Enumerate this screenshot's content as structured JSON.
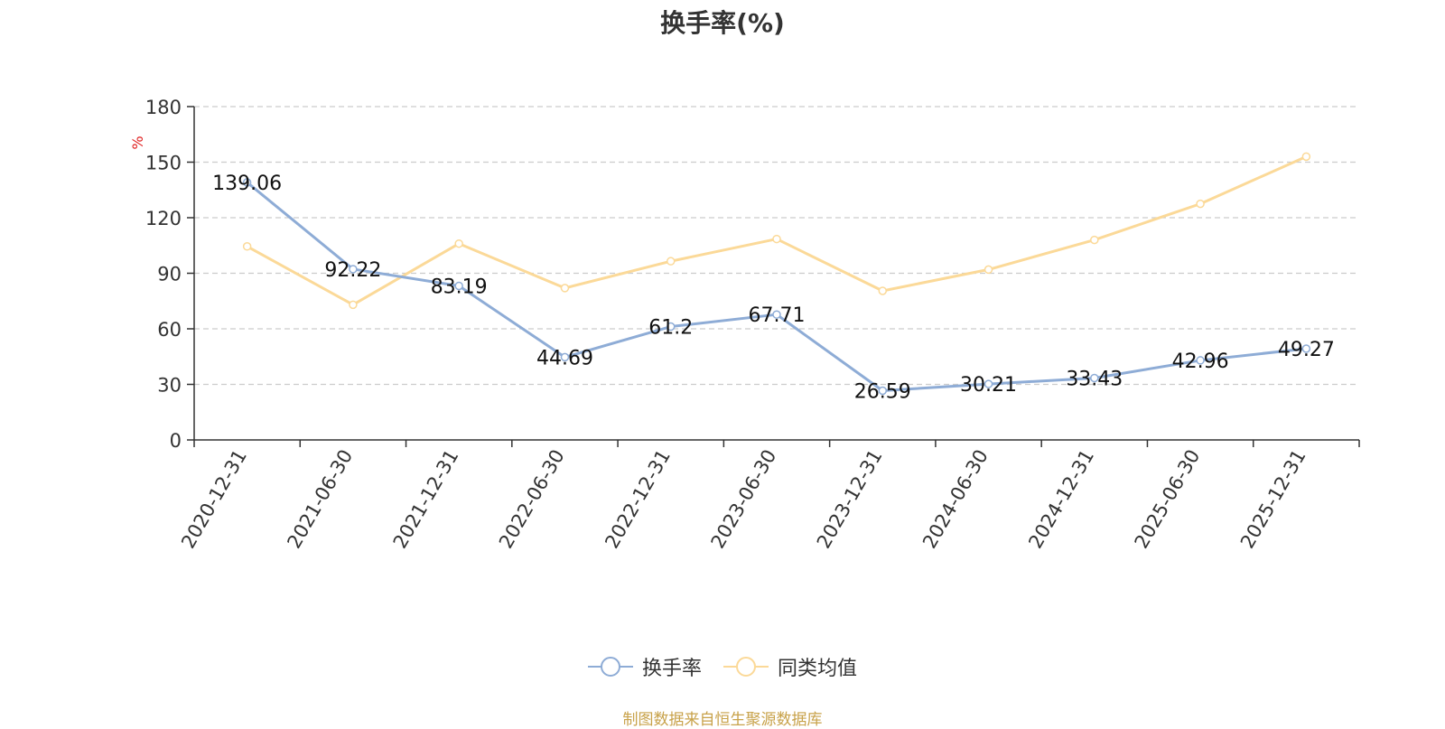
{
  "chart_data": {
    "type": "line",
    "title": "换手率(%)",
    "ylabel": "%",
    "xlabel": "",
    "ylim": [
      0,
      180
    ],
    "yticks": [
      0,
      30,
      60,
      90,
      120,
      150,
      180
    ],
    "grid": true,
    "legend_position": "bottom-center",
    "categories": [
      "2020-12-31",
      "2021-06-30",
      "2021-12-31",
      "2022-06-30",
      "2022-12-31",
      "2023-06-30",
      "2023-12-31",
      "2024-06-30",
      "2024-12-31",
      "2025-06-30",
      "2025-12-31"
    ],
    "series": [
      {
        "name": "换手率",
        "color": "#8eacd6",
        "values": [
          139.06,
          92.22,
          83.19,
          44.69,
          61.2,
          67.71,
          26.59,
          30.21,
          33.43,
          42.96,
          49.27
        ],
        "labels": [
          "139.06",
          "92.22",
          "83.19",
          "44.69",
          "61.2",
          "67.71",
          "26.59",
          "30.21",
          "33.43",
          "42.96",
          "49.27"
        ]
      },
      {
        "name": "同类均值",
        "color": "#fbd998",
        "values": [
          104.5,
          73,
          106,
          82,
          96.5,
          108.5,
          80.5,
          92,
          108,
          127.5,
          153
        ]
      }
    ]
  },
  "footer": {
    "source": "制图数据来自恒生聚源数据库"
  }
}
